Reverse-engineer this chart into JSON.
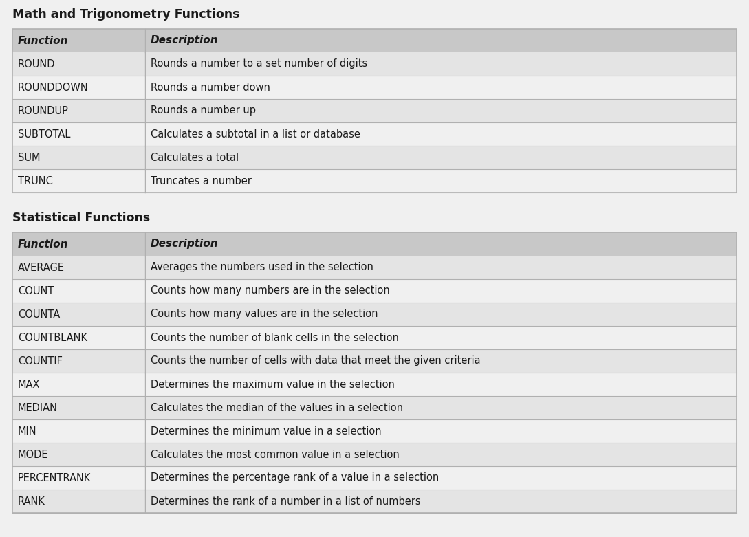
{
  "page_bg": "#f0f0f0",
  "section1_title": "Math and Trigonometry Functions",
  "section2_title": "Statistical Functions",
  "header_bg": "#c8c8c8",
  "row_bg_alt": "#e4e4e4",
  "row_bg_white": "#f0f0f0",
  "col1_header": "Function",
  "col2_header": "Description",
  "table1_rows": [
    [
      "ROUND",
      "Rounds a number to a set number of digits"
    ],
    [
      "ROUNDDOWN",
      "Rounds a number down"
    ],
    [
      "ROUNDUP",
      "Rounds a number up"
    ],
    [
      "SUBTOTAL",
      "Calculates a subtotal in a list or database"
    ],
    [
      "SUM",
      "Calculates a total"
    ],
    [
      "TRUNC",
      "Truncates a number"
    ]
  ],
  "table2_rows": [
    [
      "AVERAGE",
      "Averages the numbers used in the selection"
    ],
    [
      "COUNT",
      "Counts how many numbers are in the selection"
    ],
    [
      "COUNTA",
      "Counts how many values are in the selection"
    ],
    [
      "COUNTBLANK",
      "Counts the number of blank cells in the selection"
    ],
    [
      "COUNTIF",
      "Counts the number of cells with data that meet the given criteria"
    ],
    [
      "MAX",
      "Determines the maximum value in the selection"
    ],
    [
      "MEDIAN",
      "Calculates the median of the values in a selection"
    ],
    [
      "MIN",
      "Determines the minimum value in a selection"
    ],
    [
      "MODE",
      "Calculates the most common value in a selection"
    ],
    [
      "PERCENTRANK",
      "Determines the percentage rank of a value in a selection"
    ],
    [
      "RANK",
      "Determines the rank of a number in a list of numbers"
    ]
  ],
  "section_title_fontsize": 12.5,
  "header_fontsize": 11,
  "row_fontsize": 10.5,
  "border_color": "#b0b0b0",
  "text_color": "#1a1a1a"
}
